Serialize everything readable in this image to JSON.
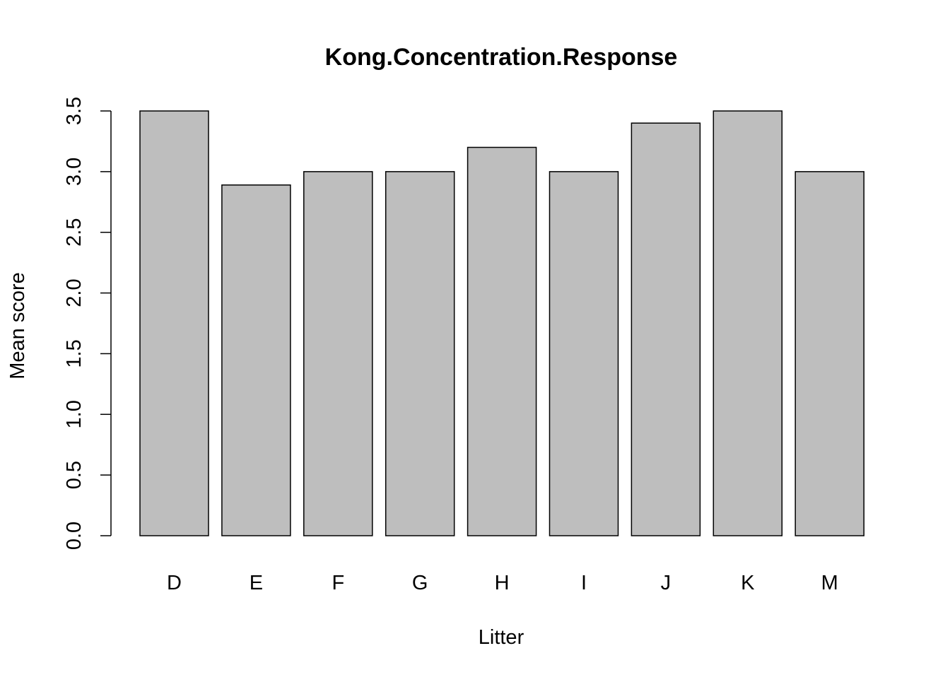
{
  "chart_data": {
    "type": "bar",
    "title": "Kong.Concentration.Response",
    "xlabel": "Litter",
    "ylabel": "Mean score",
    "categories": [
      "D",
      "E",
      "F",
      "G",
      "H",
      "I",
      "J",
      "K",
      "M"
    ],
    "values": [
      3.5,
      2.89,
      3.0,
      3.0,
      3.2,
      3.0,
      3.4,
      3.5,
      3.0
    ],
    "ylim": [
      0,
      3.5
    ],
    "yticks": [
      0.0,
      0.5,
      1.0,
      1.5,
      2.0,
      2.5,
      3.0,
      3.5
    ],
    "ytick_labels": [
      "0.0",
      "0.5",
      "1.0",
      "1.5",
      "2.0",
      "2.5",
      "3.0",
      "3.5"
    ],
    "bar_color": "#bebebe",
    "bar_border_color": "#000000",
    "grid": false,
    "legend": "none"
  }
}
